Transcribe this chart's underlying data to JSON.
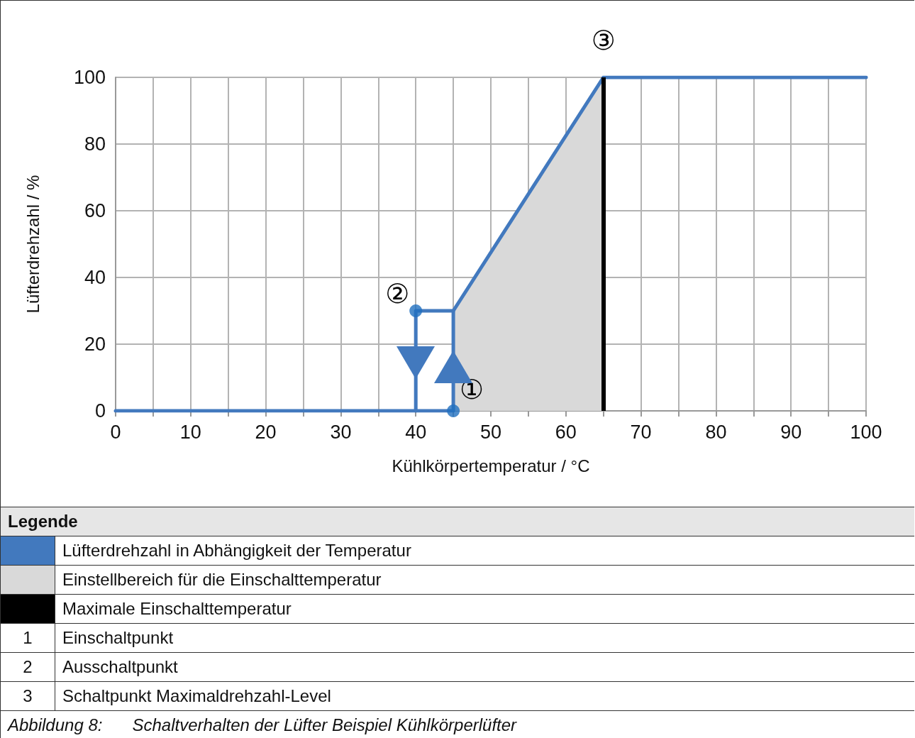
{
  "chart_data": {
    "type": "line",
    "xlabel": "Kühlkörpertemperatur / °C",
    "ylabel": "Lüfterdrehzahl / %",
    "xlim": [
      0,
      100
    ],
    "ylim": [
      0,
      100
    ],
    "xticks": [
      0,
      {
        "value": 5,
        "label": null
      },
      10,
      {
        "value": 15,
        "label": null
      },
      20,
      {
        "value": 25,
        "label": null
      },
      30,
      {
        "value": 35,
        "label": null
      },
      40,
      {
        "value": 45,
        "label": null
      },
      50,
      {
        "value": 55,
        "label": null
      },
      60,
      {
        "value": 65,
        "label": null
      },
      70,
      {
        "value": 75,
        "label": null
      },
      80,
      {
        "value": 85,
        "label": null
      },
      90,
      {
        "value": 95,
        "label": null
      },
      100
    ],
    "yticks": [
      0,
      20,
      40,
      60,
      80,
      100
    ],
    "grid": true,
    "legend": "bottom",
    "line_style": "solid",
    "series": [
      {
        "type": "area",
        "name": "Einstellbereich für die Einschalttemperatur",
        "color": "#d9d9d9",
        "x": [
          45,
          45,
          65,
          65
        ],
        "values": [
          0,
          30,
          100,
          0
        ]
      },
      {
        "name": "Lüfterdrehzahl in Abhängigkeit der Temperatur",
        "color": "#4279be",
        "x": [
          0,
          45,
          45,
          65,
          100
        ],
        "values": [
          0,
          0,
          30,
          100,
          100
        ]
      },
      {
        "color": "#4279be",
        "x": [
          45,
          40,
          40
        ],
        "values": [
          30,
          30,
          0
        ]
      },
      {
        "type": "scatter",
        "marker": "circle",
        "color": "#1f6fbf",
        "x": [
          45,
          40
        ],
        "values": [
          0,
          30
        ]
      }
    ],
    "ref_lines": [
      {
        "axis": "x",
        "value": 65,
        "label": "Maximale Einschalttemperatur",
        "color": "#000000",
        "line_style": "solid"
      }
    ],
    "annotations": [
      {
        "text": "①",
        "x": 45,
        "y": 0
      },
      {
        "text": "②",
        "x": 40,
        "y": 30
      },
      {
        "text": "③",
        "x": 65,
        "y": 100
      },
      "Legende",
      "1",
      "Einschaltpunkt",
      "2",
      "Ausschaltpunkt",
      "3",
      "Schaltpunkt Maximaldrehzahl-Level",
      "Abbildung 8:",
      "Schaltverhalten der Lüfter Beispiel Kühlkörperlüfter"
    ]
  }
}
